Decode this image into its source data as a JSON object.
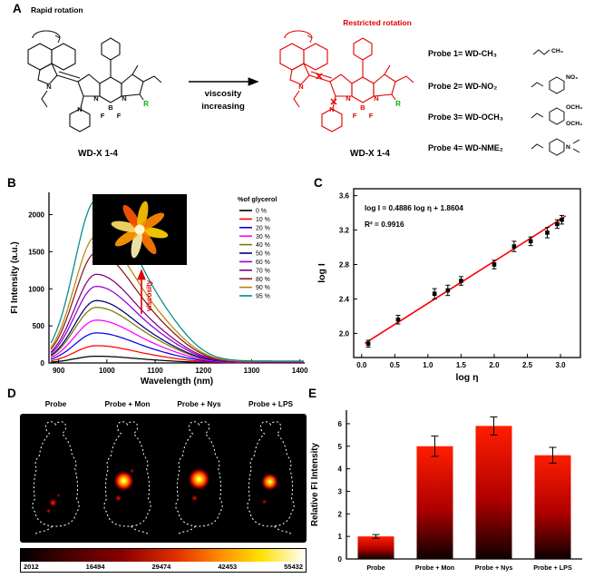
{
  "panels": {
    "a": {
      "panel_label": "A",
      "rapid_rotation": "Rapid rotation",
      "restricted_rotation": "Restricted rotation",
      "viscosity_line1": "viscosity",
      "viscosity_line2": "increasing",
      "left_name": "WD-X 1-4",
      "right_name": "WD-X 1-4",
      "x_mark": "✕",
      "atoms": {
        "n1": "N",
        "n2": "N",
        "n3": "N",
        "pip_n": "N",
        "b": "B",
        "f1": "F",
        "f2": "F",
        "r": "R"
      },
      "probes": [
        {
          "label": "Probe 1= WD-CH₃",
          "sub": "CH₃"
        },
        {
          "label": "Probe 2= WD-NO₂",
          "sub": "NO₂"
        },
        {
          "label": "Probe 3= WD-OCH₃",
          "sub": "OCH₃",
          "sub2": "OCH₃"
        },
        {
          "label": "Probe 4= WD-NME₂",
          "sub": "N"
        }
      ]
    },
    "b": {
      "panel_label": "B"
    },
    "c": {
      "panel_label": "C"
    },
    "d": {
      "panel_label": "D",
      "mice_labels": [
        "Probe",
        "Probe + Mon",
        "Probe + Nys",
        "Probe + LPS"
      ],
      "colorbar_values": [
        "2012",
        "16494",
        "29474",
        "42453",
        "55432"
      ]
    },
    "e": {
      "panel_label": "E"
    }
  },
  "chart_data": [
    {
      "id": "glycerol-spectra",
      "type": "line",
      "xlabel": "Wavelength (nm)",
      "ylabel": "FI Intensity (a.u.)",
      "xlim": [
        880,
        1410
      ],
      "ylim": [
        0,
        2300
      ],
      "xticks": [
        900,
        1000,
        1100,
        1200,
        1300,
        1400
      ],
      "yticks": [
        0,
        500,
        1000,
        1500,
        2000
      ],
      "legend_title": "%of glycerol",
      "peak_wavelength_nm": 978,
      "inset_label": "viscosity",
      "series": [
        {
          "name": "0 %",
          "color": "#000000",
          "peak_intensity": 90
        },
        {
          "name": "10 %",
          "color": "#ff0000",
          "peak_intensity": 230
        },
        {
          "name": "20 %",
          "color": "#0000ee",
          "peak_intensity": 400
        },
        {
          "name": "30 %",
          "color": "#ff00ff",
          "peak_intensity": 570
        },
        {
          "name": "40 %",
          "color": "#7d7d00",
          "peak_intensity": 740
        },
        {
          "name": "50 %",
          "color": "#000080",
          "peak_intensity": 830
        },
        {
          "name": "60 %",
          "color": "#9400d3",
          "peak_intensity": 1020
        },
        {
          "name": "70 %",
          "color": "#800080",
          "peak_intensity": 1180
        },
        {
          "name": "80 %",
          "color": "#8b1a1a",
          "peak_intensity": 1470
        },
        {
          "name": "90 %",
          "color": "#b8860b",
          "peak_intensity": 1690
        },
        {
          "name": "95 %",
          "color": "#008b8b",
          "peak_intensity": 2170
        }
      ]
    },
    {
      "id": "log-log-fit",
      "type": "scatter",
      "xlabel": "log η",
      "ylabel": "log I",
      "xlim": [
        -0.12,
        3.3
      ],
      "ylim": [
        1.72,
        3.68
      ],
      "xticks": [
        0.0,
        0.5,
        1.0,
        1.5,
        2.0,
        2.5,
        3.0
      ],
      "yticks": [
        2.0,
        2.4,
        2.8,
        3.2,
        3.6
      ],
      "equation": "log I = 0.4886 log η + 1.8604",
      "r_squared": "R² = 0.9916",
      "fit": {
        "slope": 0.4886,
        "intercept": 1.8604,
        "color": "#ff0000",
        "x_start": 0.05,
        "x_end": 3.08
      },
      "points": [
        {
          "x": 0.1,
          "y": 1.88,
          "err": 0.04
        },
        {
          "x": 0.55,
          "y": 2.16,
          "err": 0.05
        },
        {
          "x": 1.1,
          "y": 2.46,
          "err": 0.06
        },
        {
          "x": 1.3,
          "y": 2.5,
          "err": 0.06
        },
        {
          "x": 1.5,
          "y": 2.61,
          "err": 0.05
        },
        {
          "x": 2.0,
          "y": 2.8,
          "err": 0.05
        },
        {
          "x": 2.3,
          "y": 3.01,
          "err": 0.06
        },
        {
          "x": 2.55,
          "y": 3.07,
          "err": 0.05
        },
        {
          "x": 2.8,
          "y": 3.17,
          "err": 0.06
        },
        {
          "x": 2.95,
          "y": 3.27,
          "err": 0.05
        },
        {
          "x": 3.02,
          "y": 3.32,
          "err": 0.05
        }
      ]
    },
    {
      "id": "relative-fi",
      "type": "bar",
      "ylabel": "Relative FI Intensity",
      "categories": [
        "Probe",
        "Probe + Mon",
        "Probe + Nys",
        "Probe + LPS"
      ],
      "values": [
        1.0,
        5.0,
        5.9,
        4.6
      ],
      "errors": [
        0.08,
        0.45,
        0.4,
        0.35
      ],
      "ylim": [
        0,
        6.6
      ],
      "yticks": [
        0,
        1,
        2,
        3,
        4,
        5,
        6
      ],
      "bar_top_color": "#ff1e00",
      "bar_bottom_color": "#0f0000"
    }
  ]
}
